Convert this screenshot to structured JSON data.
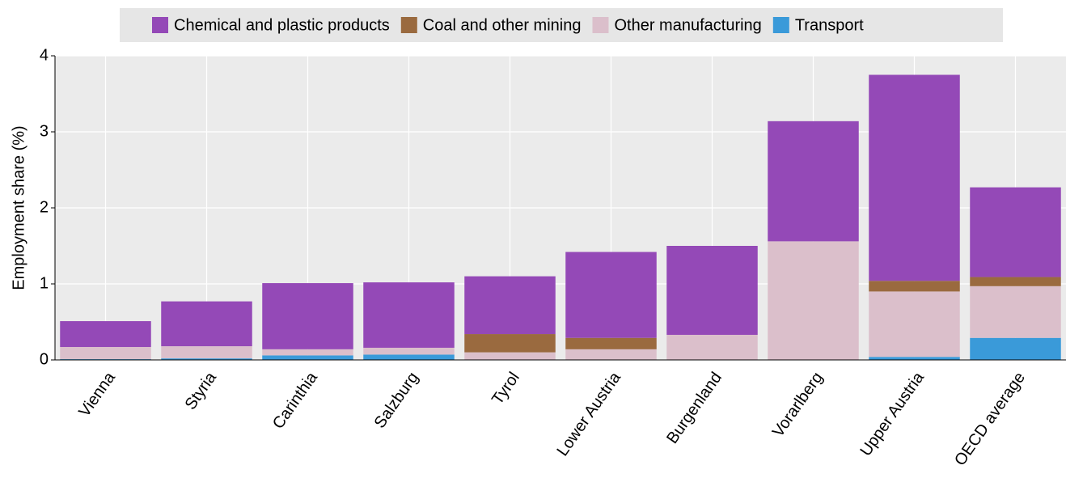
{
  "chart_data": {
    "type": "stacked_bar",
    "y_label": "Employment share (%)",
    "categories": [
      "Vienna",
      "Styria",
      "Carinthia",
      "Salzburg",
      "Tyrol",
      "Lower Austria",
      "Burgenland",
      "Vorarlberg",
      "Upper Austria",
      "OECD average"
    ],
    "series": [
      {
        "name": "Chemical and plastic products",
        "color": "#9449b7",
        "values": [
          0.34,
          0.59,
          0.87,
          0.86,
          0.76,
          1.13,
          1.17,
          1.58,
          2.71,
          1.18
        ]
      },
      {
        "name": "Coal and other mining",
        "color": "#9a6a3f",
        "values": [
          0,
          0,
          0,
          0,
          0.24,
          0.15,
          0,
          0,
          0.14,
          0.12
        ]
      },
      {
        "name": "Other manufacturing",
        "color": "#dbbfcb",
        "values": [
          0.16,
          0.16,
          0.08,
          0.09,
          0.1,
          0.14,
          0.33,
          1.56,
          0.86,
          0.68
        ]
      },
      {
        "name": "Transport",
        "color": "#3a9ad9",
        "values": [
          0.01,
          0.02,
          0.06,
          0.07,
          0,
          0,
          0,
          0,
          0.04,
          0.29
        ]
      }
    ],
    "ylim": [
      0,
      4
    ],
    "yticks": [
      0,
      1,
      2,
      3,
      4
    ],
    "grid": true,
    "legend": "top"
  }
}
